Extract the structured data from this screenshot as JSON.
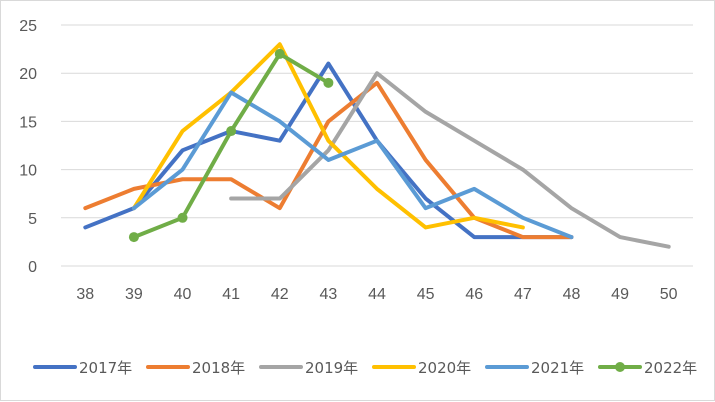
{
  "chart_data": {
    "type": "line",
    "title": "",
    "xlabel": "",
    "ylabel": "",
    "x": [
      38,
      39,
      40,
      41,
      42,
      43,
      44,
      45,
      46,
      47,
      48,
      49,
      50
    ],
    "ylim": [
      0,
      25
    ],
    "yticks": [
      0,
      5,
      10,
      15,
      20,
      25
    ],
    "grid": true,
    "legend_position": "bottom",
    "series": [
      {
        "name": "2017年",
        "color": "#4472C4",
        "markers": false,
        "values": [
          4,
          6,
          12,
          14,
          13,
          21,
          13,
          7,
          3,
          3,
          3,
          null,
          null
        ]
      },
      {
        "name": "2018年",
        "color": "#ED7D31",
        "markers": false,
        "values": [
          6,
          8,
          9,
          9,
          6,
          15,
          19,
          11,
          5,
          3,
          3,
          null,
          null
        ]
      },
      {
        "name": "2019年",
        "color": "#A5A5A5",
        "markers": false,
        "values": [
          null,
          null,
          null,
          7,
          7,
          12,
          20,
          16,
          13,
          10,
          6,
          3,
          2
        ]
      },
      {
        "name": "2020年",
        "color": "#FFC000",
        "markers": false,
        "values": [
          null,
          6,
          14,
          18,
          23,
          13,
          8,
          4,
          5,
          4,
          null,
          null,
          null
        ]
      },
      {
        "name": "2021年",
        "color": "#5B9BD5",
        "markers": false,
        "values": [
          null,
          6,
          10,
          18,
          15,
          11,
          13,
          6,
          8,
          5,
          3,
          null,
          null
        ]
      },
      {
        "name": "2022年",
        "color": "#70AD47",
        "markers": true,
        "values": [
          null,
          3,
          5,
          14,
          22,
          19,
          null,
          null,
          null,
          null,
          null,
          null,
          null
        ]
      }
    ]
  }
}
